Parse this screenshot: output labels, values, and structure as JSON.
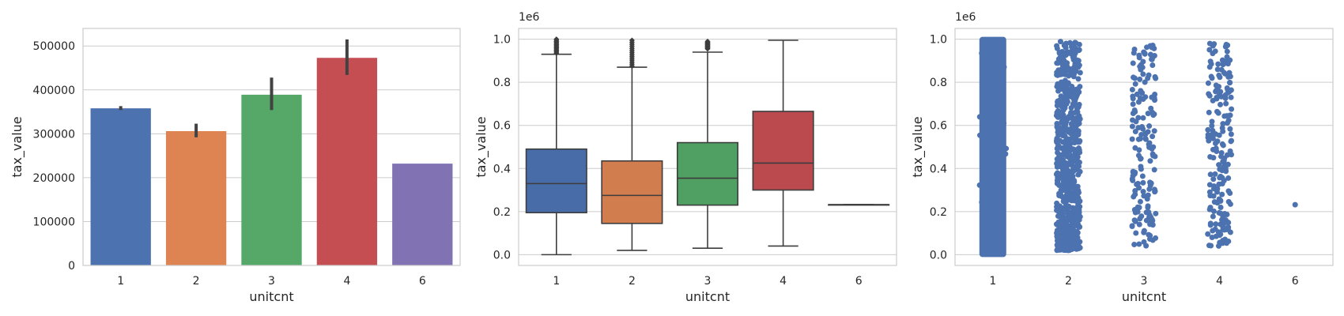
{
  "chart_data": [
    {
      "type": "bar",
      "categories": [
        "1",
        "2",
        "3",
        "4",
        "6"
      ],
      "values": [
        358000,
        306000,
        389000,
        473000,
        232000
      ],
      "error_low": [
        354000,
        292000,
        354000,
        434000,
        232000
      ],
      "error_high": [
        363000,
        323000,
        428000,
        515000,
        232000
      ],
      "colors": [
        "#4C72B0",
        "#DD8452",
        "#55A868",
        "#C44E52",
        "#8172B3"
      ],
      "xlabel": "unitcnt",
      "ylabel": "tax_value",
      "ylim": [
        0,
        540000
      ],
      "yticks": [
        0,
        100000,
        200000,
        300000,
        400000,
        500000
      ],
      "ytick_labels": [
        "0",
        "100000",
        "200000",
        "300000",
        "400000",
        "500000"
      ],
      "offset_label": "",
      "grid": "y"
    },
    {
      "type": "box",
      "categories": [
        "1",
        "2",
        "3",
        "4",
        "6"
      ],
      "boxes": [
        {
          "q1": 0.195,
          "median": 0.33,
          "q3": 0.49,
          "whisker_low": 0.0,
          "whisker_high": 0.93,
          "outliers_low": 0.935,
          "outliers_high": 1.0
        },
        {
          "q1": 0.145,
          "median": 0.275,
          "q3": 0.435,
          "whisker_low": 0.02,
          "whisker_high": 0.87,
          "outliers_low": 0.875,
          "outliers_high": 0.995
        },
        {
          "q1": 0.23,
          "median": 0.355,
          "q3": 0.52,
          "whisker_low": 0.03,
          "whisker_high": 0.94,
          "outliers_low": 0.955,
          "outliers_high": 0.99
        },
        {
          "q1": 0.3,
          "median": 0.425,
          "q3": 0.665,
          "whisker_low": 0.04,
          "whisker_high": 0.995,
          "outliers_low": null,
          "outliers_high": null
        },
        {
          "q1": 0.232,
          "median": 0.232,
          "q3": 0.232,
          "whisker_low": 0.232,
          "whisker_high": 0.232,
          "outliers_low": null,
          "outliers_high": null
        }
      ],
      "colors": [
        "#4C72B0",
        "#DD8452",
        "#55A868",
        "#C44E52",
        "#8172B3"
      ],
      "xlabel": "unitcnt",
      "ylabel": "tax_value",
      "ylim": [
        -0.05,
        1.05
      ],
      "yticks": [
        0.0,
        0.2,
        0.4,
        0.6,
        0.8,
        1.0
      ],
      "ytick_labels": [
        "0.0",
        "0.2",
        "0.4",
        "0.6",
        "0.8",
        "1.0"
      ],
      "offset_label": "1e6",
      "grid": "y"
    },
    {
      "type": "scatter",
      "categories": [
        "1",
        "2",
        "3",
        "4",
        "6"
      ],
      "strips": [
        {
          "min": 0.0,
          "max": 1.0,
          "count": 2000,
          "dense": true
        },
        {
          "min": 0.02,
          "max": 0.99,
          "count": 700,
          "dense": false
        },
        {
          "min": 0.03,
          "max": 0.99,
          "count": 160,
          "dense": false
        },
        {
          "min": 0.04,
          "max": 0.99,
          "count": 190,
          "dense": false
        },
        {
          "min": 0.232,
          "max": 0.232,
          "count": 1,
          "dense": false
        }
      ],
      "color": "#4C72B0",
      "xlabel": "unitcnt",
      "ylabel": "tax_value",
      "ylim": [
        -0.05,
        1.05
      ],
      "yticks": [
        0.0,
        0.2,
        0.4,
        0.6,
        0.8,
        1.0
      ],
      "ytick_labels": [
        "0.0",
        "0.2",
        "0.4",
        "0.6",
        "0.8",
        "1.0"
      ],
      "offset_label": "1e6",
      "grid": "y"
    }
  ]
}
